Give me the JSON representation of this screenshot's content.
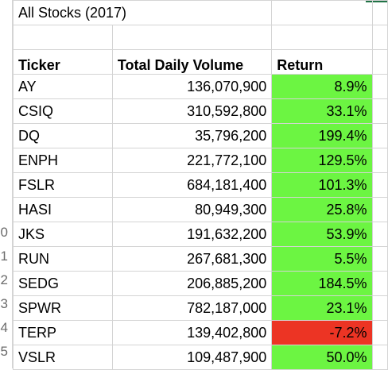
{
  "sheet": {
    "title": "All Stocks (2017)",
    "headers": {
      "ticker": "Ticker",
      "volume": "Total Daily Volume",
      "return": "Return"
    },
    "rows": [
      {
        "row_num": "",
        "ticker": "AY",
        "volume": "136,070,900",
        "return": "8.9%",
        "status": "positive"
      },
      {
        "row_num": "",
        "ticker": "CSIQ",
        "volume": "310,592,800",
        "return": "33.1%",
        "status": "positive"
      },
      {
        "row_num": "",
        "ticker": "DQ",
        "volume": "35,796,200",
        "return": "199.4%",
        "status": "positive"
      },
      {
        "row_num": "",
        "ticker": "ENPH",
        "volume": "221,772,100",
        "return": "129.5%",
        "status": "positive"
      },
      {
        "row_num": "",
        "ticker": "FSLR",
        "volume": "684,181,400",
        "return": "101.3%",
        "status": "positive"
      },
      {
        "row_num": "",
        "ticker": "HASI",
        "volume": "80,949,300",
        "return": "25.8%",
        "status": "positive"
      },
      {
        "row_num": "0",
        "ticker": "JKS",
        "volume": "191,632,200",
        "return": "53.9%",
        "status": "positive"
      },
      {
        "row_num": "1",
        "ticker": "RUN",
        "volume": "267,681,300",
        "return": "5.5%",
        "status": "positive"
      },
      {
        "row_num": "2",
        "ticker": "SEDG",
        "volume": "206,885,200",
        "return": "184.5%",
        "status": "positive"
      },
      {
        "row_num": "3",
        "ticker": "SPWR",
        "volume": "782,187,000",
        "return": "23.1%",
        "status": "positive"
      },
      {
        "row_num": "4",
        "ticker": "TERP",
        "volume": "139,402,800",
        "return": "-7.2%",
        "status": "negative"
      },
      {
        "row_num": "5",
        "ticker": "VSLR",
        "volume": "109,487,900",
        "return": "50.0%",
        "status": "positive"
      }
    ]
  },
  "colors": {
    "positive_fill": "#6cf542",
    "negative_fill": "#ec3424",
    "gridline": "#d4d4d4",
    "header_underline": "#000000"
  }
}
